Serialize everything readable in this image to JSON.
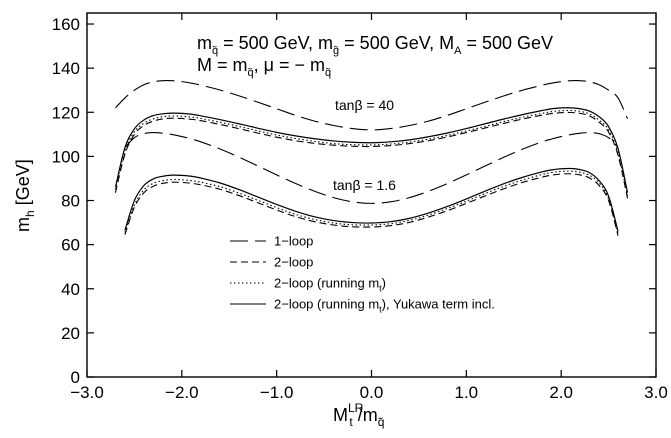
{
  "chart_data": {
    "type": "line",
    "xlim": [
      -3.0,
      3.0
    ],
    "ylim": [
      0,
      165
    ],
    "x_ticks": [
      {
        "v": -3.0,
        "label": "−3.0"
      },
      {
        "v": -2.0,
        "label": "−2.0"
      },
      {
        "v": -1.0,
        "label": "−1.0"
      },
      {
        "v": 0.0,
        "label": "0.0"
      },
      {
        "v": 1.0,
        "label": "1.0"
      },
      {
        "v": 2.0,
        "label": "2.0"
      },
      {
        "v": 3.0,
        "label": "3.0"
      }
    ],
    "y_ticks": [
      {
        "v": 0,
        "label": "0"
      },
      {
        "v": 20,
        "label": "20"
      },
      {
        "v": 40,
        "label": "40"
      },
      {
        "v": 60,
        "label": "60"
      },
      {
        "v": 80,
        "label": "80"
      },
      {
        "v": 100,
        "label": "100"
      },
      {
        "v": 120,
        "label": "120"
      },
      {
        "v": 140,
        "label": "140"
      },
      {
        "v": 160,
        "label": "160"
      }
    ],
    "xlabel": {
      "main": "M",
      "sup": "LR",
      "sub": "t",
      "tail": " /m",
      "tail_sub": "q̃"
    },
    "ylabel": {
      "main": "m",
      "sub": "h",
      "tail": " [GeV]"
    },
    "annotations": {
      "line1": [
        {
          "t": "m"
        },
        {
          "t": "q̃",
          "sub": true
        },
        {
          "t": " = 500 GeV, m"
        },
        {
          "t": "g̃",
          "sub": true
        },
        {
          "t": " = 500 GeV, M"
        },
        {
          "t": "A",
          "sub": true
        },
        {
          "t": " = 500 GeV"
        }
      ],
      "line2": [
        {
          "t": "M = m"
        },
        {
          "t": "q̃",
          "sub": true
        },
        {
          "t": ", μ = − m"
        },
        {
          "t": "q̃",
          "sub": true
        }
      ],
      "tanb_high": "tanβ = 40",
      "tanb_low": "tanβ = 1.6"
    },
    "legend_position": "lower-left",
    "legend": [
      {
        "key": "one_loop",
        "label": "1−loop",
        "dash": "18,7"
      },
      {
        "key": "two_loop",
        "label": "2−loop",
        "dash": "7,4"
      },
      {
        "key": "two_loop_running",
        "label": "2−loop (running m",
        "label_sub": "t",
        "label_tail": ")",
        "dash": "1.5,2.5"
      },
      {
        "key": "two_loop_yukawa",
        "label": "2−loop (running m",
        "label_sub": "t",
        "label_tail": "), Yukawa term incl.",
        "dash": ""
      }
    ],
    "series": [
      {
        "group": "tanb40",
        "style": "one_loop",
        "x": [
          -2.7,
          -2.6,
          -2.5,
          -2.4,
          -2.3,
          -2.2,
          -2.1,
          -2.0,
          -1.9,
          -1.8,
          -1.6,
          -1.4,
          -1.2,
          -1.0,
          -0.8,
          -0.6,
          -0.4,
          -0.2,
          0.0,
          0.2,
          0.4,
          0.6,
          0.8,
          1.0,
          1.2,
          1.4,
          1.6,
          1.8,
          1.9,
          2.0,
          2.1,
          2.2,
          2.3,
          2.4,
          2.5,
          2.6,
          2.7
        ],
        "y": [
          122,
          126.5,
          130,
          132.5,
          133.8,
          134.3,
          134.3,
          133.9,
          133.2,
          132.3,
          130.1,
          127.5,
          124.6,
          121.6,
          118.6,
          116,
          114,
          112.6,
          112,
          112.6,
          114,
          116,
          118.6,
          121.6,
          124.6,
          127.5,
          130.1,
          132.3,
          133.2,
          133.9,
          134.3,
          134.3,
          133.8,
          132.5,
          130,
          126.5,
          117
        ]
      },
      {
        "group": "tanb40",
        "style": "two_loop",
        "x": [
          -2.7,
          -2.6,
          -2.5,
          -2.4,
          -2.3,
          -2.2,
          -2.1,
          -2.0,
          -1.9,
          -1.8,
          -1.6,
          -1.4,
          -1.2,
          -1.0,
          -0.8,
          -0.6,
          -0.4,
          -0.2,
          0.0,
          0.2,
          0.4,
          0.6,
          0.8,
          1.0,
          1.2,
          1.4,
          1.6,
          1.8,
          1.9,
          2.0,
          2.1,
          2.2,
          2.3,
          2.4,
          2.5,
          2.6,
          2.7
        ],
        "y": [
          83.5,
          101,
          110,
          114,
          116,
          117,
          117.3,
          117.2,
          116.8,
          116.2,
          114.5,
          112.6,
          110.6,
          108.7,
          107.1,
          105.9,
          105.1,
          104.6,
          104.5,
          104.9,
          105.8,
          107.1,
          108.8,
          110.8,
          112.9,
          115,
          117,
          118.7,
          119.4,
          119.8,
          119.9,
          119.5,
          118.3,
          115.5,
          111,
          100.5,
          81
        ]
      },
      {
        "group": "tanb40",
        "style": "two_loop_running",
        "x": [
          -2.7,
          -2.6,
          -2.5,
          -2.4,
          -2.3,
          -2.2,
          -2.1,
          -2.0,
          -1.9,
          -1.8,
          -1.6,
          -1.4,
          -1.2,
          -1.0,
          -0.8,
          -0.6,
          -0.4,
          -0.2,
          0.0,
          0.2,
          0.4,
          0.6,
          0.8,
          1.0,
          1.2,
          1.4,
          1.6,
          1.8,
          1.9,
          2.0,
          2.1,
          2.2,
          2.3,
          2.4,
          2.5,
          2.6,
          2.7
        ],
        "y": [
          85,
          102.5,
          111.2,
          115,
          117,
          118,
          118.3,
          118.2,
          117.8,
          117.2,
          115.5,
          113.6,
          111.6,
          109.7,
          108.1,
          106.8,
          105.8,
          105.3,
          105.2,
          105.6,
          106.5,
          107.8,
          109.5,
          111.5,
          113.6,
          115.8,
          117.8,
          119.5,
          120.3,
          120.7,
          120.8,
          120.4,
          119.2,
          116.5,
          112,
          101.5,
          82
        ]
      },
      {
        "group": "tanb40",
        "style": "two_loop_yukawa",
        "x": [
          -2.7,
          -2.6,
          -2.5,
          -2.4,
          -2.3,
          -2.2,
          -2.1,
          -2.0,
          -1.9,
          -1.8,
          -1.6,
          -1.4,
          -1.2,
          -1.0,
          -0.8,
          -0.6,
          -0.4,
          -0.2,
          0.0,
          0.2,
          0.4,
          0.6,
          0.8,
          1.0,
          1.2,
          1.4,
          1.6,
          1.8,
          1.9,
          2.0,
          2.1,
          2.2,
          2.3,
          2.4,
          2.5,
          2.6,
          2.7
        ],
        "y": [
          86,
          104,
          112.5,
          116.5,
          118.5,
          119.3,
          119.6,
          119.5,
          119.1,
          118.4,
          116.7,
          114.8,
          112.8,
          110.9,
          109.3,
          108,
          107,
          106.4,
          106.2,
          106.6,
          107.5,
          108.9,
          110.6,
          112.6,
          114.8,
          117,
          119,
          120.8,
          121.6,
          122,
          122,
          121.6,
          120.5,
          118,
          113.5,
          103.5,
          83.5
        ]
      },
      {
        "group": "tanb1.6",
        "style": "one_loop",
        "x": [
          -2.6,
          -2.5,
          -2.4,
          -2.3,
          -2.2,
          -2.1,
          -2.0,
          -1.9,
          -1.8,
          -1.6,
          -1.4,
          -1.2,
          -1.0,
          -0.8,
          -0.6,
          -0.4,
          -0.2,
          0.0,
          0.2,
          0.4,
          0.6,
          0.8,
          1.0,
          1.2,
          1.4,
          1.6,
          1.8,
          1.9,
          2.0,
          2.1,
          2.2,
          2.3,
          2.4,
          2.5,
          2.6
        ],
        "y": [
          104,
          108.5,
          110.3,
          110.8,
          110.5,
          109.9,
          109,
          107.9,
          106.6,
          103.4,
          99.7,
          95.7,
          91.6,
          87.7,
          84.2,
          81.3,
          79.4,
          78.7,
          79.4,
          81.3,
          84.2,
          87.7,
          91.6,
          95.7,
          99.7,
          103.4,
          106.6,
          107.9,
          109,
          109.9,
          110.5,
          110.8,
          110.3,
          108.5,
          104
        ]
      },
      {
        "group": "tanb1.6",
        "style": "two_loop",
        "x": [
          -2.6,
          -2.5,
          -2.4,
          -2.3,
          -2.2,
          -2.1,
          -2.0,
          -1.9,
          -1.8,
          -1.6,
          -1.4,
          -1.2,
          -1.0,
          -0.8,
          -0.6,
          -0.4,
          -0.2,
          0.0,
          0.2,
          0.4,
          0.6,
          0.8,
          1.0,
          1.2,
          1.4,
          1.6,
          1.8,
          1.9,
          2.0,
          2.1,
          2.2,
          2.3,
          2.4,
          2.5,
          2.6
        ],
        "y": [
          64.5,
          77,
          83.5,
          86.5,
          87.8,
          88.3,
          88.2,
          87.8,
          87.1,
          85.1,
          82.3,
          79,
          75.7,
          72.7,
          70.4,
          68.9,
          68.1,
          68,
          68.6,
          70.1,
          72.5,
          75.4,
          78.7,
          82.1,
          85.4,
          88.3,
          90.6,
          91.5,
          92,
          92.1,
          91.6,
          90.2,
          86.8,
          80,
          64
        ]
      },
      {
        "group": "tanb1.6",
        "style": "two_loop_running",
        "x": [
          -2.6,
          -2.5,
          -2.4,
          -2.3,
          -2.2,
          -2.1,
          -2.0,
          -1.9,
          -1.8,
          -1.6,
          -1.4,
          -1.2,
          -1.0,
          -0.8,
          -0.6,
          -0.4,
          -0.2,
          0.0,
          0.2,
          0.4,
          0.6,
          0.8,
          1.0,
          1.2,
          1.4,
          1.6,
          1.8,
          1.9,
          2.0,
          2.1,
          2.2,
          2.3,
          2.4,
          2.5,
          2.6
        ],
        "y": [
          65.5,
          78,
          84.8,
          87.8,
          89,
          89.5,
          89.4,
          89,
          88.3,
          86.3,
          83.4,
          80.1,
          76.8,
          73.7,
          71.4,
          69.8,
          69,
          68.9,
          69.5,
          71,
          73.4,
          76.4,
          79.7,
          83.2,
          86.5,
          89.4,
          91.8,
          92.7,
          93.2,
          93.3,
          92.8,
          91.4,
          88,
          81,
          65
        ]
      },
      {
        "group": "tanb1.6",
        "style": "two_loop_yukawa",
        "x": [
          -2.6,
          -2.5,
          -2.4,
          -2.3,
          -2.2,
          -2.1,
          -2.0,
          -1.9,
          -1.8,
          -1.6,
          -1.4,
          -1.2,
          -1.0,
          -0.8,
          -0.6,
          -0.4,
          -0.2,
          0.0,
          0.2,
          0.4,
          0.6,
          0.8,
          1.0,
          1.2,
          1.4,
          1.6,
          1.8,
          1.9,
          2.0,
          2.1,
          2.2,
          2.3,
          2.4,
          2.5,
          2.6
        ],
        "y": [
          66.5,
          80,
          86.8,
          89.8,
          91,
          91.5,
          91.4,
          91,
          90.2,
          88,
          85,
          81.6,
          78.2,
          75.1,
          72.6,
          70.9,
          70,
          69.8,
          70.4,
          71.9,
          74.3,
          77.3,
          80.7,
          84.3,
          87.7,
          90.6,
          93,
          93.9,
          94.4,
          94.5,
          94,
          92.6,
          89,
          82,
          66
        ]
      }
    ]
  }
}
